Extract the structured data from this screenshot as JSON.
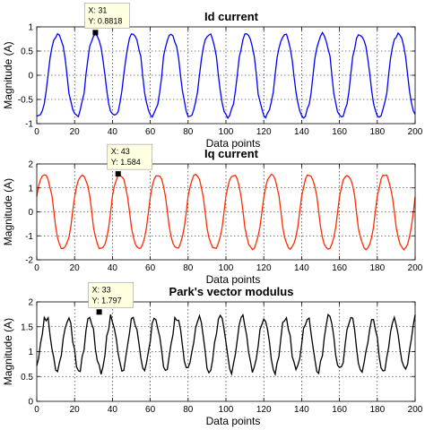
{
  "chart_data": [
    {
      "type": "line",
      "title": "Id current",
      "xlabel": "Data points",
      "ylabel": "Magnitude (A)",
      "xlim": [
        0,
        200
      ],
      "ylim": [
        -1,
        1
      ],
      "xticks": [
        "0",
        "20",
        "40",
        "60",
        "80",
        "100",
        "120",
        "140",
        "160",
        "180",
        "200"
      ],
      "yticks": [
        "-1",
        "-0.5",
        "0",
        "0.5",
        "1"
      ],
      "grid": "dotted",
      "color": "#0000ff",
      "signal": {
        "amplitude": 0.85,
        "period": 20,
        "peak_at": 11,
        "noise": 0.04,
        "samples": 200
      },
      "datatip": {
        "x_label": "X: 31",
        "y_label": "Y: 0.8818",
        "x": 31,
        "y": 0.8818
      }
    },
    {
      "type": "line",
      "title": "Iq current",
      "xlabel": "Data points",
      "ylabel": "Magnitude (A)",
      "xlim": [
        0,
        200
      ],
      "ylim": [
        -2,
        2
      ],
      "xticks": [
        "0",
        "20",
        "40",
        "60",
        "80",
        "100",
        "120",
        "140",
        "160",
        "180",
        "200"
      ],
      "yticks": [
        "-2",
        "-1",
        "0",
        "1",
        "2"
      ],
      "grid": "dotted",
      "color": "#ff2a00",
      "signal": {
        "amplitude": 1.55,
        "period": 20,
        "peak_at": 4,
        "noise": 0.05,
        "samples": 200
      },
      "datatip": {
        "x_label": "X: 43",
        "y_label": "Y: 1.584",
        "x": 43,
        "y": 1.584
      }
    },
    {
      "type": "line",
      "title": "Park's vector modulus",
      "xlabel": "Data points",
      "ylabel": "Magnitude (A)",
      "xlim": [
        0,
        200
      ],
      "ylim": [
        0,
        2
      ],
      "xticks": [
        "0",
        "20",
        "40",
        "60",
        "80",
        "100",
        "120",
        "140",
        "160",
        "180",
        "200"
      ],
      "yticks": [
        "0",
        "0.5",
        "1",
        "1.5",
        "2"
      ],
      "grid": "dotted",
      "color": "#000000",
      "signal": {
        "offset": 1.15,
        "amplitude": 0.6,
        "period": 11.5,
        "peak_at": 5,
        "noise": 0.08,
        "samples": 200
      },
      "datatip": {
        "x_label": "X: 33",
        "y_label": "Y: 1.797",
        "x": 33,
        "y": 1.797
      }
    }
  ]
}
